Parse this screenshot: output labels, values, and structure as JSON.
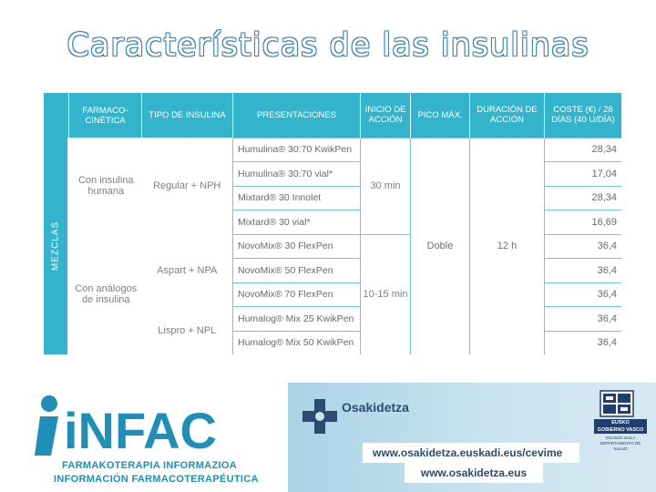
{
  "slide": {
    "title": "Características de las insulinas"
  },
  "table": {
    "side_label": "MEZCLAS",
    "headers": {
      "farmaco": "FARMACO-CINÉTICA",
      "tipo": "TIPO DE INSULINA",
      "presentaciones": "PRESENTACIONES",
      "inicio": "INICIO DE ACCIÓN",
      "pico": "PICO MÁX.",
      "duracion": "DURACIÓN DE ACCIÓN",
      "coste": "COSTE (€) / 28 DÍAS (40 U/DÍA)"
    },
    "groups": {
      "humana": "Con insulina humana",
      "analogos": "Con análogos de insulina"
    },
    "types": {
      "regular_nph": "Regular + NPH",
      "aspart_npa": "Aspart + NPA",
      "lispro_npl": "Lispro + NPL"
    },
    "onsets": {
      "humana": "30 min",
      "analogos": "10-15 min"
    },
    "pico": "Doble",
    "duracion": "12 h",
    "rows": [
      {
        "presentacion": "Humulina® 30:70 KwikPen",
        "coste": "28,34"
      },
      {
        "presentacion": "Humulina® 30:70 vial*",
        "coste": "17,04"
      },
      {
        "presentacion": "Mixtard® 30 Innolet",
        "coste": "28,34"
      },
      {
        "presentacion": "Mixtard® 30 vial*",
        "coste": "16,69"
      },
      {
        "presentacion": "NovoMix® 30 FlexPen",
        "coste": "36,4"
      },
      {
        "presentacion": "NovoMix® 50 FlexPen",
        "coste": "36,4"
      },
      {
        "presentacion": "NovoMix® 70 FlexPen",
        "coste": "36,4"
      },
      {
        "presentacion": "Humalog® Mix 25 KwikPen",
        "coste": "36,4"
      },
      {
        "presentacion": "Humalog® Mix 50 KwikPen",
        "coste": "36,4"
      }
    ]
  },
  "footer": {
    "infac_logo": "iNFAC",
    "infac_sub1": "FARMAKOTERAPIA INFORMAZIOA",
    "infac_sub2": "INFORMACIÓN FARMACOTERAPÉUTICA",
    "osakidetza": "Osakidetza",
    "url1": "www.osakidetza.euskadi.eus/cevime",
    "dash": "-",
    "url2": "www.osakidetza.eus",
    "gv_line1": "EUSKO JAURLARITZA",
    "gv_line2": "GOBIERNO VASCO",
    "gv_line3": "OSASUN SAILA",
    "gv_line4": "DEPARTAMENTO DE SALUD"
  }
}
